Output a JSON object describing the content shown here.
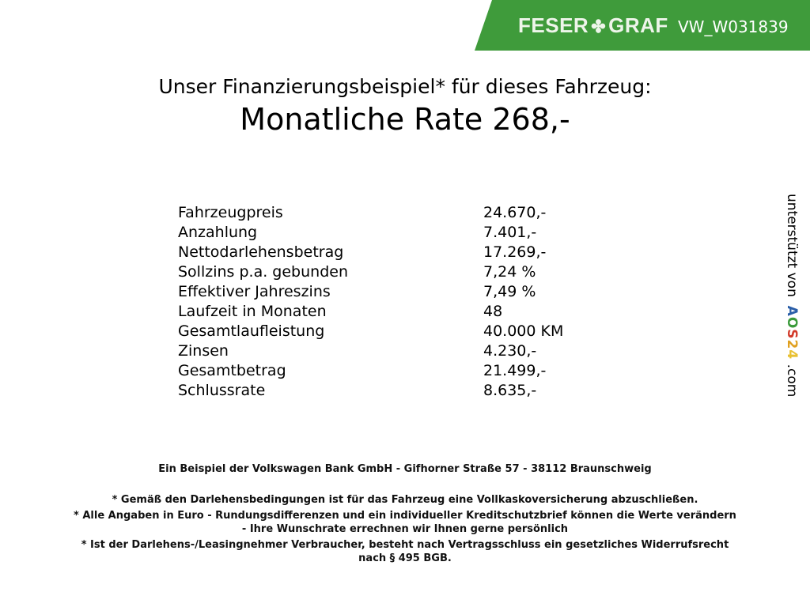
{
  "header": {
    "logo_text_left": "FESER",
    "logo_text_right": "GRAF",
    "code": "VW_W031839",
    "brand_color": "#3f9b3b"
  },
  "title": "Unser Finanzierungsbeispiel* für dieses Fahrzeug:",
  "rate": "Monatliche Rate 268,-",
  "rows": [
    {
      "label": "Fahrzeugpreis",
      "value": "24.670,-"
    },
    {
      "label": "Anzahlung",
      "value": "7.401,-"
    },
    {
      "label": "Nettodarlehensbetrag",
      "value": "17.269,-"
    },
    {
      "label": "Sollzins p.a. gebunden",
      "value": "7,24 %"
    },
    {
      "label": "Effektiver Jahreszins",
      "value": "7,49 %"
    },
    {
      "label": "Laufzeit in Monaten",
      "value": "48"
    },
    {
      "label": "Gesamtlaufleistung",
      "value": "40.000 KM"
    },
    {
      "label": "Zinsen",
      "value": "4.230,-"
    },
    {
      "label": "Gesamtbetrag",
      "value": "21.499,-"
    },
    {
      "label": "Schlussrate",
      "value": "8.635,-"
    }
  ],
  "side": {
    "prefix": "unterstützt von",
    "a": "A",
    "o": "O",
    "s": "S",
    "two": "2",
    "four": "4",
    "suffix": ".com"
  },
  "footer": {
    "bank": "Ein Beispiel der Volkswagen Bank GmbH - Gifhorner Straße 57 - 38112 Braunschweig",
    "note1": "* Gemäß den Darlehensbedingungen ist für das Fahrzeug eine Vollkaskoversicherung abzuschließen.",
    "note2a": "* Alle Angaben in Euro - Rundungsdifferenzen und ein individueller Kreditschutzbrief können die Werte verändern",
    "note2b": "- Ihre Wunschrate errechnen wir Ihnen gerne persönlich",
    "note3a": "* Ist der Darlehens-/Leasingnehmer Verbraucher, besteht nach Vertragsschluss ein gesetzliches Widerrufsrecht",
    "note3b": "nach § 495 BGB."
  }
}
